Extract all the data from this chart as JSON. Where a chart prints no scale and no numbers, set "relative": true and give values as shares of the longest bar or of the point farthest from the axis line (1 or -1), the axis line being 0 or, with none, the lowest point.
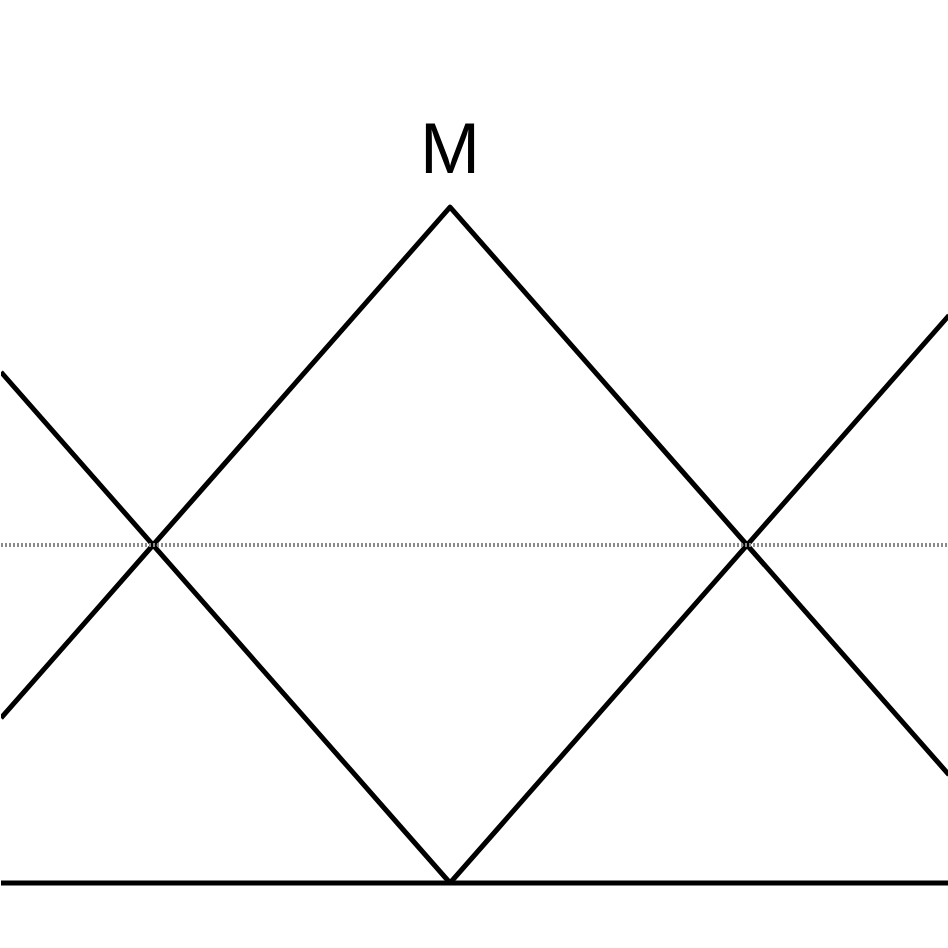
{
  "chart_data": {
    "type": "line",
    "relative": true,
    "grid": false,
    "categories": [
      null,
      null,
      null,
      null,
      null,
      null,
      null,
      null,
      null,
      null,
      null,
      null,
      null,
      null,
      null,
      null,
      null,
      null,
      null,
      null
    ],
    "series": [
      {
        "color": "#000000",
        "values": [
          0.756,
          0.672,
          0.588,
          0.504,
          0.42,
          0.336,
          0.252,
          0.168,
          0.084,
          0,
          null,
          null,
          null,
          null,
          null,
          null,
          null,
          null,
          null,
          null
        ]
      },
      {
        "name": "M",
        "color": "#000000",
        "values": [
          0.244,
          0.328,
          0.412,
          0.496,
          0.58,
          0.664,
          0.748,
          0.832,
          0.916,
          1,
          0.916,
          0.832,
          0.748,
          0.664,
          0.58,
          0.496,
          0.412,
          0.328,
          0.244,
          0.16
        ]
      },
      {
        "color": "#000000",
        "values": [
          null,
          null,
          null,
          null,
          null,
          null,
          null,
          null,
          null,
          0,
          0.084,
          0.168,
          0.252,
          0.336,
          0.42,
          0.504,
          0.588,
          0.672,
          0.756,
          0.84
        ]
      }
    ],
    "ref_lines": [
      {
        "axis": "y",
        "value": 0.5,
        "color": "#8c8c8c",
        "line_style": "dotted"
      }
    ]
  }
}
